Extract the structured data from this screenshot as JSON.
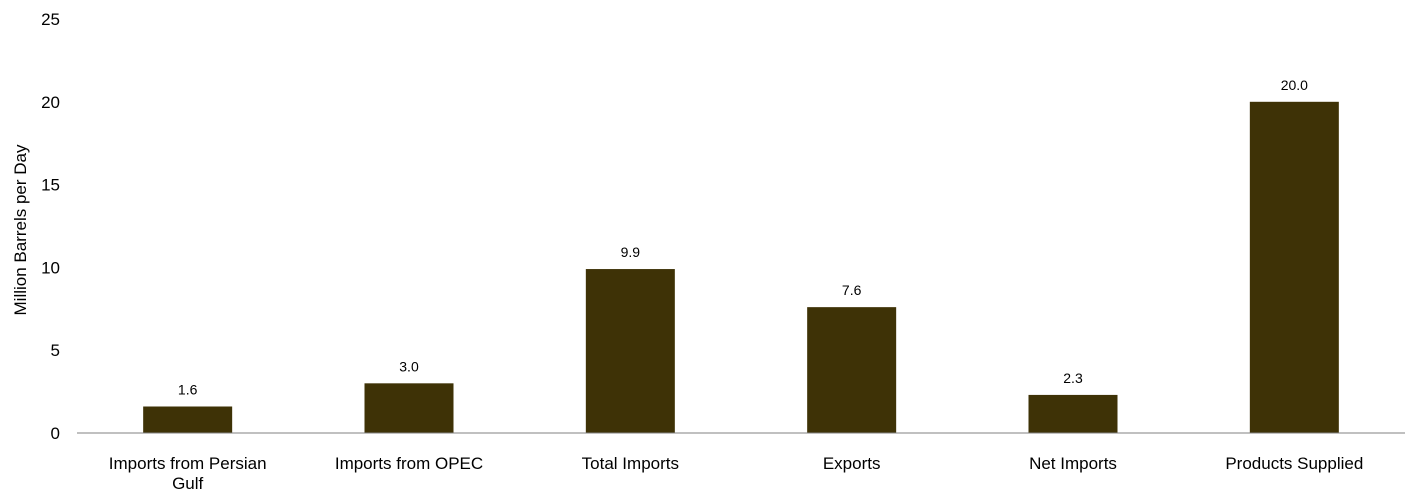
{
  "chart_data": {
    "type": "bar",
    "title": "",
    "xlabel": "",
    "ylabel": "Million Barrels per Day",
    "categories": [
      [
        "Imports from Persian",
        "Gulf"
      ],
      [
        "Imports from OPEC"
      ],
      [
        "Total Imports"
      ],
      [
        "Exports"
      ],
      [
        "Net Imports"
      ],
      [
        "Products Supplied"
      ]
    ],
    "values": [
      1.6,
      3.0,
      9.9,
      7.6,
      2.3,
      20.0
    ],
    "data_labels": [
      "1.6",
      "3.0",
      "9.9",
      "7.6",
      "2.3",
      "20.0"
    ],
    "ylim": [
      0,
      25
    ],
    "yticks": [
      "0",
      "5",
      "10",
      "15",
      "20",
      "25"
    ],
    "grid": false,
    "legend": "none",
    "bar_color": "#3e3206"
  }
}
